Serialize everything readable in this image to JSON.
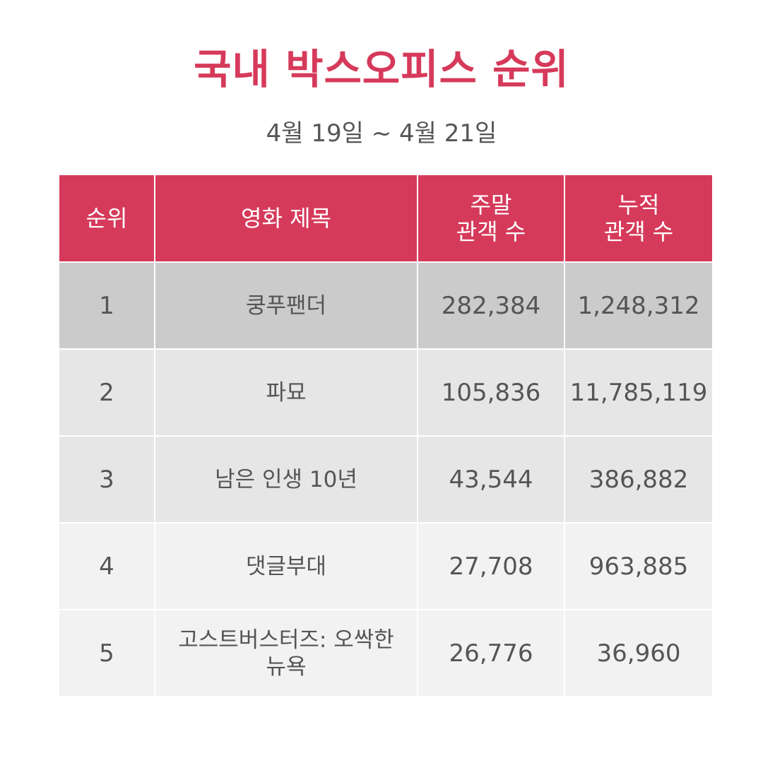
{
  "title": "국내 박스오피스 순위",
  "subtitle": "4월 19일 ~ 4월 21일",
  "colors": {
    "accent": "#d63a5a",
    "row_backgrounds": [
      "#cbcbcb",
      "#e6e6e6",
      "#e6e6e6",
      "#f2f2f2",
      "#f2f2f2"
    ]
  },
  "chart_data": {
    "type": "table",
    "columns": [
      "순위",
      "영화 제목",
      "주말\n관객 수",
      "누적\n관객 수"
    ],
    "rows": [
      [
        "1",
        "쿵푸팬더",
        "282,384",
        "1,248,312"
      ],
      [
        "2",
        "파묘",
        "105,836",
        "11,785,119"
      ],
      [
        "3",
        "남은 인생 10년",
        "43,544",
        "386,882"
      ],
      [
        "4",
        "댓글부대",
        "27,708",
        "963,885"
      ],
      [
        "5",
        "고스트버스터즈: 오싹한 뉴욕",
        "26,776",
        "36,960"
      ]
    ]
  }
}
